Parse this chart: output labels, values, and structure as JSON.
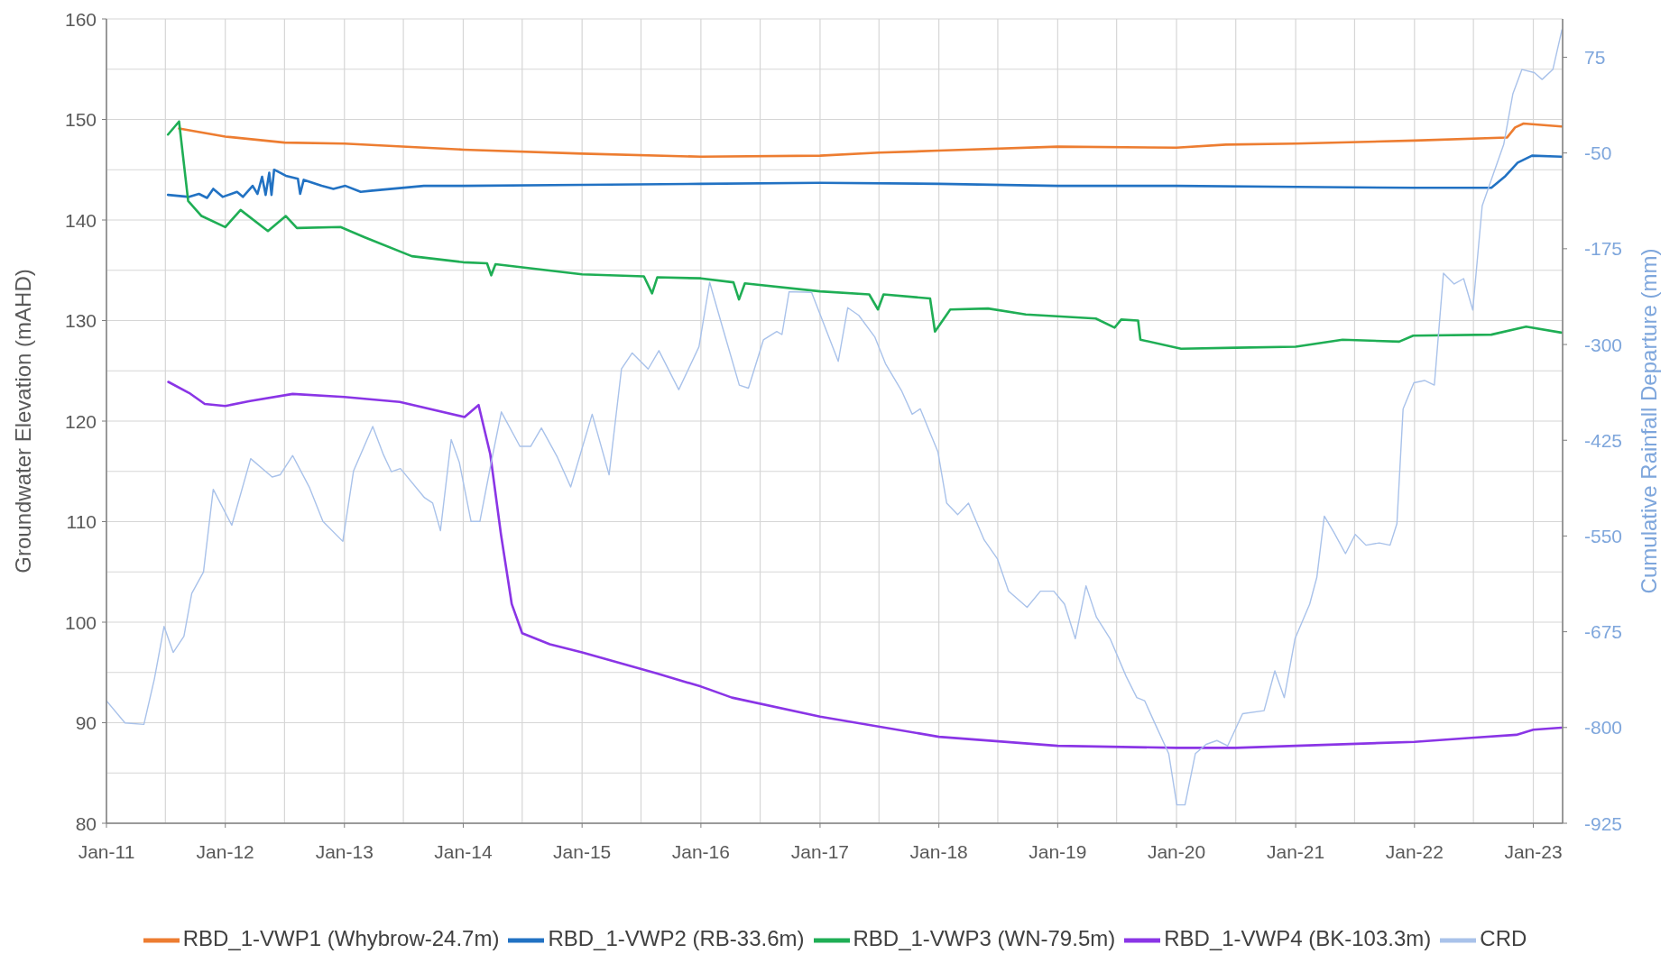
{
  "chart_data": {
    "type": "line",
    "ylabel": "Groundwater Elevation (mAHD)",
    "y2label": "Cumulative Rainfall Departure (mm)",
    "xlim": [
      "2011-01-01",
      "2023-04-01"
    ],
    "xticks": [
      {
        "value": "2011-01-01",
        "label": "Jan-11"
      },
      {
        "value": "2011-07-01",
        "label": null
      },
      {
        "value": "2012-01-01",
        "label": "Jan-12"
      },
      {
        "value": "2012-07-01",
        "label": null
      },
      {
        "value": "2013-01-01",
        "label": "Jan-13"
      },
      {
        "value": "2013-07-01",
        "label": null
      },
      {
        "value": "2014-01-01",
        "label": "Jan-14"
      },
      {
        "value": "2014-07-01",
        "label": null
      },
      {
        "value": "2015-01-01",
        "label": "Jan-15"
      },
      {
        "value": "2015-07-01",
        "label": null
      },
      {
        "value": "2016-01-01",
        "label": "Jan-16"
      },
      {
        "value": "2016-07-01",
        "label": null
      },
      {
        "value": "2017-01-01",
        "label": "Jan-17"
      },
      {
        "value": "2017-07-01",
        "label": null
      },
      {
        "value": "2018-01-01",
        "label": "Jan-18"
      },
      {
        "value": "2018-07-01",
        "label": null
      },
      {
        "value": "2019-01-01",
        "label": "Jan-19"
      },
      {
        "value": "2019-07-01",
        "label": null
      },
      {
        "value": "2020-01-01",
        "label": "Jan-20"
      },
      {
        "value": "2020-07-01",
        "label": null
      },
      {
        "value": "2021-01-01",
        "label": "Jan-21"
      },
      {
        "value": "2021-07-01",
        "label": null
      },
      {
        "value": "2022-01-01",
        "label": "Jan-22"
      },
      {
        "value": "2022-07-01",
        "label": null
      },
      {
        "value": "2023-01-01",
        "label": "Jan-23"
      }
    ],
    "ylim": [
      80,
      160
    ],
    "yticks": [
      80,
      {
        "value": 85,
        "label": null
      },
      90,
      {
        "value": 95,
        "label": null
      },
      100,
      {
        "value": 105,
        "label": null
      },
      110,
      {
        "value": 115,
        "label": null
      },
      120,
      {
        "value": 125,
        "label": null
      },
      130,
      {
        "value": 135,
        "label": null
      },
      140,
      {
        "value": 145,
        "label": null
      },
      150,
      {
        "value": 155,
        "label": null
      },
      160
    ],
    "y2lim": [
      -925,
      125
    ],
    "y2ticks": [
      -925,
      -800,
      -675,
      -550,
      -425,
      -300,
      -175,
      -50,
      75
    ],
    "grid": true,
    "legend": "bottom",
    "marker": "none",
    "line_style": "solid",
    "series": [
      {
        "name": "RBD_1-VWP1 (Whybrow-24.7m)",
        "color": "#ed7d31",
        "x": [
          "2011-08-12",
          "2012-01-01",
          "2012-07-01",
          "2013-01-01",
          "2014-01-01",
          "2015-01-01",
          "2016-01-01",
          "2017-01-01",
          "2017-07-01",
          "2018-01-01",
          "2019-01-01",
          "2020-01-01",
          "2020-06-01",
          "2021-01-01",
          "2022-01-01",
          "2022-10-12",
          "2022-11-06",
          "2022-12-02",
          "2023-03-28"
        ],
        "values": [
          149.1,
          148.3,
          147.7,
          147.6,
          147.0,
          146.6,
          146.3,
          146.4,
          146.7,
          146.9,
          147.3,
          147.2,
          147.5,
          147.6,
          147.9,
          148.2,
          149.2,
          149.6,
          149.3
        ]
      },
      {
        "name": "RBD_1-VWP2 (RB-33.6m)",
        "color": "#2272c3",
        "x": [
          "2011-07-09",
          "2011-09-12",
          "2011-10-12",
          "2011-11-06",
          "2011-11-25",
          "2011-12-24",
          "2012-02-06",
          "2012-02-24",
          "2012-03-25",
          "2012-04-09",
          "2012-04-23",
          "2012-05-04",
          "2012-05-15",
          "2012-05-22",
          "2012-05-30",
          "2012-06-06",
          "2012-07-05",
          "2012-08-11",
          "2012-08-18",
          "2012-08-29",
          "2012-10-23",
          "2012-11-28",
          "2013-01-04",
          "2013-02-20",
          "2013-03-21",
          "2013-09-02",
          "2014-01-01",
          "2015-01-01",
          "2016-01-01",
          "2017-01-01",
          "2018-01-01",
          "2019-01-01",
          "2020-01-01",
          "2021-01-01",
          "2022-01-01",
          "2022-08-25",
          "2022-10-05",
          "2022-11-14",
          "2022-12-28",
          "2023-03-28"
        ],
        "values": [
          142.5,
          142.3,
          142.6,
          142.2,
          143.1,
          142.3,
          142.8,
          142.3,
          143.4,
          142.6,
          144.3,
          142.5,
          144.7,
          142.5,
          145.0,
          144.9,
          144.4,
          144.1,
          142.6,
          144.0,
          143.4,
          143.1,
          143.4,
          142.8,
          142.9,
          143.4,
          143.4,
          143.5,
          143.6,
          143.7,
          143.6,
          143.4,
          143.4,
          143.3,
          143.2,
          143.2,
          144.3,
          145.7,
          146.4,
          146.3
        ]
      },
      {
        "name": "RBD_1-VWP3 (WN-79.5m)",
        "color": "#1fae55",
        "x": [
          "2011-07-09",
          "2011-08-12",
          "2011-09-09",
          "2011-10-20",
          "2012-01-01",
          "2012-02-17",
          "2012-05-11",
          "2012-07-05",
          "2012-08-08",
          "2012-12-20",
          "2013-03-03",
          "2013-07-27",
          "2014-01-01",
          "2014-03-15",
          "2014-03-28",
          "2014-04-10",
          "2015-01-01",
          "2015-07-10",
          "2015-08-04",
          "2015-08-20",
          "2016-01-01",
          "2016-04-10",
          "2016-04-27",
          "2016-05-15",
          "2017-01-01",
          "2017-06-01",
          "2017-06-28",
          "2017-07-15",
          "2017-12-05",
          "2017-12-20",
          "2018-02-05",
          "2018-06-01",
          "2018-09-25",
          "2019-04-28",
          "2019-06-25",
          "2019-07-15",
          "2019-09-05",
          "2019-09-12",
          "2020-01-15",
          "2020-07-01",
          "2021-01-01",
          "2021-05-25",
          "2021-11-15",
          "2021-12-28",
          "2022-08-25",
          "2022-12-10",
          "2023-03-28"
        ],
        "values": [
          148.5,
          149.8,
          141.9,
          140.4,
          139.3,
          141.0,
          138.9,
          140.4,
          139.2,
          139.3,
          138.3,
          136.4,
          135.8,
          135.7,
          134.5,
          135.6,
          134.6,
          134.4,
          132.7,
          134.3,
          134.2,
          133.8,
          132.1,
          133.7,
          132.9,
          132.6,
          131.1,
          132.6,
          132.2,
          128.9,
          131.1,
          131.2,
          130.6,
          130.2,
          129.3,
          130.1,
          130.0,
          128.1,
          127.2,
          127.3,
          127.4,
          128.1,
          127.9,
          128.5,
          128.6,
          129.4,
          128.8
        ]
      },
      {
        "name": "RBD_1-VWP4 (BK-103.3m)",
        "color": "#8a35e6",
        "x": [
          "2011-07-10",
          "2011-09-12",
          "2011-10-30",
          "2012-01-01",
          "2012-03-17",
          "2012-07-26",
          "2013-01-01",
          "2013-06-20",
          "2014-01-05",
          "2014-02-17",
          "2014-03-25",
          "2014-04-27",
          "2014-05-30",
          "2014-07-01",
          "2014-09-24",
          "2015-01-01",
          "2015-08-18",
          "2016-01-01",
          "2016-04-05",
          "2017-01-01",
          "2018-01-01",
          "2019-01-01",
          "2020-01-01",
          "2020-07-01",
          "2021-01-01",
          "2022-01-01",
          "2022-06-25",
          "2022-11-10",
          "2023-01-01",
          "2023-03-28"
        ],
        "values": [
          123.9,
          122.8,
          121.7,
          121.5,
          122.0,
          122.7,
          122.4,
          121.9,
          120.4,
          121.6,
          116.7,
          108.7,
          101.8,
          98.9,
          97.8,
          97.0,
          94.9,
          93.6,
          92.5,
          90.6,
          88.6,
          87.7,
          87.5,
          87.5,
          87.7,
          88.1,
          88.5,
          88.8,
          89.3,
          89.5
        ]
      },
      {
        "name": "CRD",
        "color": "#a9c2ea",
        "axis": "y2",
        "x": [
          "2011-01-01",
          "2011-02-27",
          "2011-04-26",
          "2011-05-28",
          "2011-06-27",
          "2011-07-25",
          "2011-08-27",
          "2011-09-20",
          "2011-10-26",
          "2011-11-25",
          "2012-01-21",
          "2012-03-19",
          "2012-05-24",
          "2012-06-18",
          "2012-07-26",
          "2012-09-16",
          "2012-10-27",
          "2012-12-27",
          "2013-01-29",
          "2013-03-29",
          "2013-05-01",
          "2013-05-25",
          "2013-06-22",
          "2013-09-04",
          "2013-09-29",
          "2013-10-23",
          "2013-11-25",
          "2013-12-20",
          "2014-01-25",
          "2014-02-21",
          "2014-03-26",
          "2014-04-28",
          "2014-06-24",
          "2014-07-27",
          "2014-08-29",
          "2014-10-17",
          "2014-11-27",
          "2015-02-01",
          "2015-03-25",
          "2015-05-02",
          "2015-06-04",
          "2015-07-23",
          "2015-08-25",
          "2015-10-25",
          "2015-12-26",
          "2016-01-28",
          "2016-03-09",
          "2016-04-28",
          "2016-05-26",
          "2016-07-11",
          "2016-08-21",
          "2016-09-06",
          "2016-09-28",
          "2016-12-06",
          "2017-02-26",
          "2017-03-27",
          "2017-04-30",
          "2017-06-18",
          "2017-07-21",
          "2017-09-08",
          "2017-10-11",
          "2017-11-05",
          "2017-11-29",
          "2017-12-29",
          "2018-01-25",
          "2018-02-28",
          "2018-04-02",
          "2018-05-20",
          "2018-06-30",
          "2018-08-03",
          "2018-09-29",
          "2018-11-09",
          "2018-12-20",
          "2019-01-22",
          "2019-02-24",
          "2019-03-29",
          "2019-04-30",
          "2019-06-11",
          "2019-07-30",
          "2019-09-01",
          "2019-09-25",
          "2019-10-28",
          "2019-12-08",
          "2020-01-02",
          "2020-01-27",
          "2020-02-28",
          "2020-04-01",
          "2020-05-04",
          "2020-06-06",
          "2020-07-22",
          "2020-09-26",
          "2020-10-29",
          "2020-11-27",
          "2020-12-30",
          "2021-02-13",
          "2021-03-07",
          "2021-03-30",
          "2021-04-28",
          "2021-06-03",
          "2021-07-03",
          "2021-08-05",
          "2021-09-15",
          "2021-10-18",
          "2021-11-08",
          "2021-11-27",
          "2021-12-30",
          "2022-02-01",
          "2022-03-03",
          "2022-03-31",
          "2022-05-03",
          "2022-06-01",
          "2022-06-29",
          "2022-07-28",
          "2022-09-03",
          "2022-10-02",
          "2022-10-30",
          "2022-11-27",
          "2023-01-04",
          "2023-01-28",
          "2023-03-02",
          "2023-03-30"
        ],
        "values": [
          -765,
          -794,
          -796,
          -737,
          -668,
          -702,
          -681,
          -625,
          -597,
          -489,
          -536,
          -449,
          -473,
          -470,
          -445,
          -487,
          -531,
          -557,
          -465,
          -407,
          -444,
          -466,
          -462,
          -500,
          -507,
          -543,
          -424,
          -454,
          -531,
          -531,
          -458,
          -388,
          -433,
          -433,
          -409,
          -447,
          -486,
          -391,
          -470,
          -332,
          -311,
          -332,
          -308,
          -359,
          -303,
          -219,
          -280,
          -353,
          -357,
          -294,
          -283,
          -287,
          -231,
          -232,
          -322,
          -252,
          -262,
          -290,
          -325,
          -360,
          -391,
          -384,
          -409,
          -440,
          -507,
          -522,
          -507,
          -555,
          -580,
          -622,
          -643,
          -622,
          -622,
          -639,
          -684,
          -615,
          -656,
          -684,
          -733,
          -761,
          -765,
          -796,
          -834,
          -901,
          -901,
          -834,
          -822,
          -817,
          -824,
          -782,
          -778,
          -726,
          -761,
          -684,
          -639,
          -604,
          -524,
          -545,
          -573,
          -548,
          -562,
          -559,
          -562,
          -534,
          -384,
          -350,
          -347,
          -353,
          -207,
          -221,
          -214,
          -255,
          -119,
          -74,
          -39,
          27,
          59,
          55,
          46,
          59,
          111
        ]
      }
    ]
  }
}
